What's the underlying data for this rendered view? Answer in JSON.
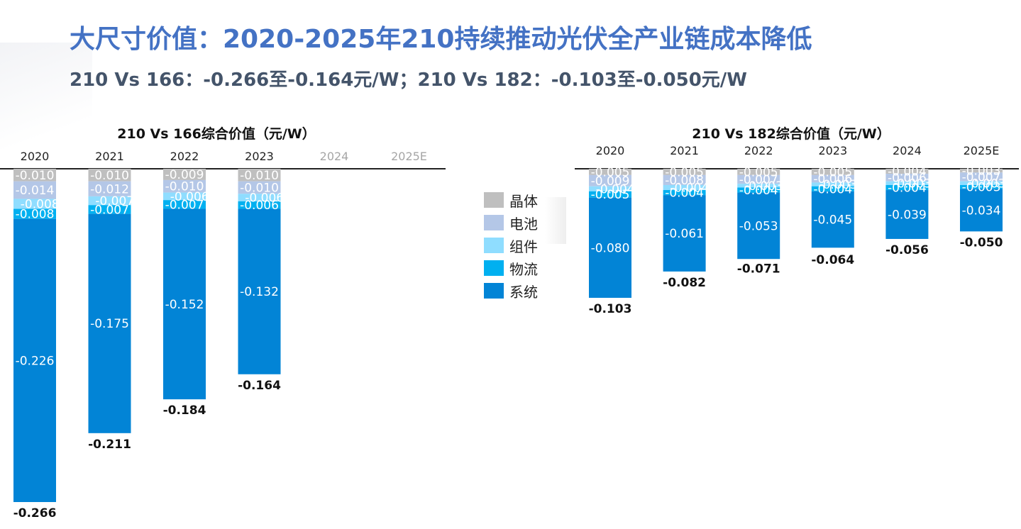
{
  "header": {
    "title": "大尺寸价值：2020-2025年210持续推动光伏全产业链成本降低",
    "subtitle": "210 Vs 166：-0.266至-0.164元/W；210 Vs 182：-0.103至-0.050元/W"
  },
  "legend": [
    {
      "label": "晶体",
      "color": "#BFBFBF"
    },
    {
      "label": "电池",
      "color": "#B4C7E7"
    },
    {
      "label": "组件",
      "color": "#8FDDFF"
    },
    {
      "label": "物流",
      "color": "#00B0F0"
    },
    {
      "label": "系统",
      "color": "#0284D6"
    }
  ],
  "chart_data": [
    {
      "type": "bar",
      "stacked": true,
      "title": "210 Vs 166综合价值（元/W）",
      "categories": [
        "2020",
        "2021",
        "2022",
        "2023",
        "2024",
        "2025E"
      ],
      "series": [
        {
          "name": "晶体",
          "color": "#BFBFBF",
          "values": [
            -0.01,
            -0.01,
            -0.009,
            -0.01,
            null,
            null
          ]
        },
        {
          "name": "电池",
          "color": "#B4C7E7",
          "values": [
            -0.014,
            -0.012,
            -0.01,
            -0.01,
            null,
            null
          ]
        },
        {
          "name": "组件",
          "color": "#8FDDFF",
          "values": [
            -0.008,
            -0.007,
            -0.006,
            -0.006,
            null,
            null
          ]
        },
        {
          "name": "物流",
          "color": "#00B0F0",
          "values": [
            -0.008,
            -0.007,
            -0.007,
            -0.006,
            null,
            null
          ]
        },
        {
          "name": "系统",
          "color": "#0284D6",
          "values": [
            -0.226,
            -0.175,
            -0.152,
            -0.132,
            null,
            null
          ]
        }
      ],
      "totals": [
        -0.266,
        -0.211,
        -0.184,
        -0.164,
        null,
        null
      ],
      "value_labels": [
        [
          "-0.010",
          "-0.010",
          "-0.009",
          "-0.010",
          null,
          null
        ],
        [
          "-0.014",
          "-0.012",
          "-0.010",
          "-0.010",
          null,
          null
        ],
        [
          "-0.008",
          "-0.007",
          "-0.006",
          "-0.006",
          null,
          null
        ],
        [
          "-0.008",
          "-0.007",
          "-0.007",
          "-0.006",
          null,
          null
        ],
        [
          "-0.226",
          "-0.175",
          "-0.152",
          "-0.132",
          null,
          null
        ]
      ],
      "total_labels": [
        "-0.266",
        "-0.211",
        "-0.184",
        "-0.164",
        null,
        null
      ],
      "ylim": [
        -0.266,
        0
      ],
      "legend_position": "right"
    },
    {
      "type": "bar",
      "stacked": true,
      "title": "210 Vs 182综合价值（元/W）",
      "categories": [
        "2020",
        "2021",
        "2022",
        "2023",
        "2024",
        "2025E"
      ],
      "series": [
        {
          "name": "晶体",
          "color": "#BFBFBF",
          "values": [
            -0.005,
            -0.005,
            -0.005,
            -0.005,
            -0.004,
            -0.003
          ]
        },
        {
          "name": "电池",
          "color": "#B4C7E7",
          "values": [
            -0.009,
            -0.008,
            -0.007,
            -0.006,
            -0.006,
            -0.007
          ]
        },
        {
          "name": "组件",
          "color": "#8FDDFF",
          "values": [
            -0.004,
            -0.004,
            -0.003,
            -0.003,
            -0.003,
            -0.003
          ]
        },
        {
          "name": "物流",
          "color": "#00B0F0",
          "values": [
            -0.005,
            -0.004,
            -0.004,
            -0.004,
            -0.004,
            -0.003
          ]
        },
        {
          "name": "系统",
          "color": "#0284D6",
          "values": [
            -0.08,
            -0.061,
            -0.053,
            -0.045,
            -0.039,
            -0.034
          ]
        }
      ],
      "totals": [
        -0.103,
        -0.082,
        -0.071,
        -0.064,
        -0.056,
        -0.05
      ],
      "value_labels": [
        [
          "-0.005",
          "-0.005",
          "-0.005",
          "-0.005",
          "-0.004",
          "-0.003"
        ],
        [
          "-0.009",
          "-0.008",
          "-0.007",
          "-0.006",
          "-0.006",
          "-0.007"
        ],
        [
          "-0.004",
          "-0.004",
          "-0.003",
          "-0.003",
          "-0.003",
          "-0.003"
        ],
        [
          "-0.005",
          "-0.004",
          "-0.004",
          "-0.004",
          "-0.004",
          "-0.003"
        ],
        [
          "-0.080",
          "-0.061",
          "-0.053",
          "-0.045",
          "-0.039",
          "-0.034"
        ]
      ],
      "total_labels": [
        "-0.103",
        "-0.082",
        "-0.071",
        "-0.064",
        "-0.056",
        "-0.050"
      ],
      "ylim": [
        -0.266,
        0
      ],
      "legend_position": "left"
    }
  ]
}
